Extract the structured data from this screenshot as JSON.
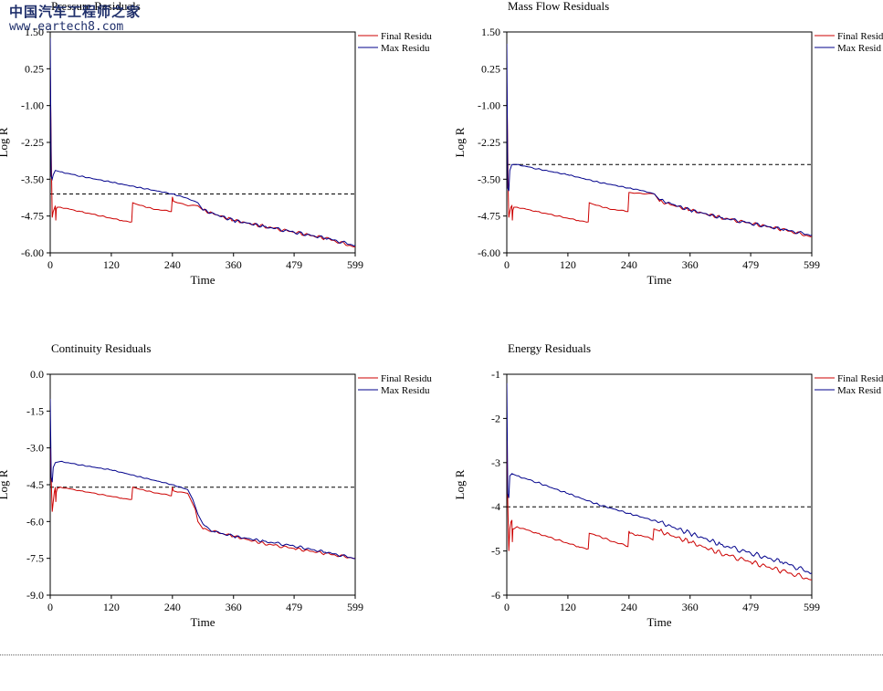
{
  "watermark": {
    "brand": "中国汽车工程师之家",
    "url": "www.eartech8.com"
  },
  "colors": {
    "final": "#cc0000",
    "max": "#00008b",
    "threshold": "#000000",
    "axis": "#000000"
  },
  "chart_data": [
    {
      "type": "line",
      "title": "Pressure Residuals",
      "xlabel": "Time",
      "ylabel": "Log R",
      "xlim": [
        0,
        599
      ],
      "ylim": [
        -6.0,
        1.5
      ],
      "xticks": [
        0,
        120,
        240,
        360,
        479,
        599
      ],
      "yticks": [
        1.5,
        0.25,
        -1.0,
        -2.25,
        -3.5,
        -4.75,
        -6.0
      ],
      "yticklabels": [
        "1.50",
        "0.25",
        "-1.00",
        "-2.25",
        "-3.50",
        "-4.75",
        "-6.00"
      ],
      "threshold": -4.0,
      "legend": {
        "position": "top-right",
        "entries": [
          "Final Residu",
          "Max Residu"
        ]
      },
      "series": [
        {
          "name": "Final Residual",
          "x": [
            0,
            1,
            2,
            3,
            4,
            6,
            8,
            10,
            11,
            12,
            14,
            20,
            60,
            100,
            140,
            160,
            162,
            170,
            200,
            238,
            240,
            242,
            250,
            270,
            290,
            300,
            360,
            420,
            479,
            540,
            599
          ],
          "y": [
            0.2,
            -1.2,
            -2.6,
            -3.8,
            -4.8,
            -4.6,
            -4.5,
            -4.4,
            -4.9,
            -4.5,
            -4.45,
            -4.45,
            -4.6,
            -4.75,
            -4.9,
            -4.95,
            -4.3,
            -4.35,
            -4.5,
            -4.6,
            -4.1,
            -4.25,
            -4.3,
            -4.4,
            -4.4,
            -4.55,
            -4.9,
            -5.1,
            -5.3,
            -5.5,
            -5.8
          ]
        },
        {
          "name": "Max Residual",
          "x": [
            0,
            2,
            4,
            6,
            10,
            20,
            60,
            120,
            180,
            240,
            270,
            290,
            300,
            360,
            420,
            479,
            540,
            599
          ],
          "y": [
            1.3,
            -3.4,
            -3.5,
            -3.35,
            -3.2,
            -3.25,
            -3.4,
            -3.6,
            -3.8,
            -4.0,
            -4.15,
            -4.3,
            -4.55,
            -4.9,
            -5.1,
            -5.3,
            -5.5,
            -5.75
          ]
        }
      ]
    },
    {
      "type": "line",
      "title": "Mass Flow Residuals",
      "xlabel": "Time",
      "ylabel": "Log R",
      "xlim": [
        0,
        599
      ],
      "ylim": [
        -6.0,
        1.5
      ],
      "xticks": [
        0,
        120,
        240,
        360,
        479,
        599
      ],
      "yticks": [
        1.5,
        0.25,
        -1.0,
        -2.25,
        -3.5,
        -4.75,
        -6.0
      ],
      "yticklabels": [
        "1.50",
        "0.25",
        "-1.00",
        "-2.25",
        "-3.50",
        "-4.75",
        "-6.00"
      ],
      "threshold": -3.0,
      "legend": {
        "position": "top-right",
        "entries": [
          "Final Resid",
          "Max Resid"
        ]
      },
      "series": [
        {
          "name": "Final Residual",
          "x": [
            0,
            1,
            2,
            3,
            4,
            6,
            8,
            10,
            11,
            12,
            14,
            20,
            60,
            100,
            140,
            160,
            162,
            170,
            200,
            238,
            240,
            242,
            250,
            270,
            290,
            300,
            360,
            420,
            479,
            540,
            599
          ],
          "y": [
            -0.2,
            -1.5,
            -2.8,
            -4.1,
            -4.8,
            -4.6,
            -4.45,
            -4.4,
            -4.9,
            -4.55,
            -4.45,
            -4.45,
            -4.6,
            -4.75,
            -4.9,
            -4.95,
            -4.3,
            -4.35,
            -4.5,
            -4.6,
            -3.95,
            -3.95,
            -3.98,
            -4.0,
            -4.0,
            -4.25,
            -4.55,
            -4.8,
            -5.0,
            -5.2,
            -5.45
          ]
        },
        {
          "name": "Max Residual",
          "x": [
            0,
            2,
            4,
            6,
            10,
            20,
            60,
            120,
            180,
            240,
            270,
            290,
            300,
            360,
            420,
            479,
            540,
            599
          ],
          "y": [
            1.1,
            -3.8,
            -3.9,
            -3.2,
            -3.0,
            -3.0,
            -3.15,
            -3.35,
            -3.6,
            -3.8,
            -3.9,
            -4.0,
            -4.2,
            -4.55,
            -4.8,
            -5.0,
            -5.2,
            -5.4
          ]
        }
      ]
    },
    {
      "type": "line",
      "title": "Continuity Residuals",
      "xlabel": "Time",
      "ylabel": "Log R",
      "xlim": [
        0,
        599
      ],
      "ylim": [
        -9.0,
        0.0
      ],
      "xticks": [
        0,
        120,
        240,
        360,
        479,
        599
      ],
      "yticks": [
        0.0,
        -1.5,
        -3.0,
        -4.5,
        -6.0,
        -7.5,
        -9.0
      ],
      "yticklabels": [
        "0.0",
        "-1.5",
        "-3.0",
        "-4.5",
        "-6.0",
        "-7.5",
        "-9.0"
      ],
      "threshold": -4.6,
      "legend": {
        "position": "top-right",
        "entries": [
          "Final Residu",
          "Max Residu"
        ]
      },
      "series": [
        {
          "name": "Final Residual",
          "x": [
            0,
            1,
            2,
            3,
            4,
            6,
            8,
            10,
            11,
            12,
            14,
            20,
            60,
            100,
            140,
            160,
            162,
            170,
            200,
            238,
            240,
            242,
            250,
            270,
            285,
            290,
            300,
            320,
            360,
            420,
            479,
            540,
            599
          ],
          "y": [
            -3.0,
            -3.6,
            -4.3,
            -5.0,
            -5.6,
            -5.2,
            -4.8,
            -4.6,
            -5.2,
            -4.8,
            -4.65,
            -4.6,
            -4.75,
            -4.9,
            -5.05,
            -5.1,
            -4.6,
            -4.65,
            -4.8,
            -4.95,
            -4.6,
            -4.75,
            -4.8,
            -4.85,
            -5.5,
            -6.0,
            -6.3,
            -6.4,
            -6.6,
            -6.9,
            -7.1,
            -7.3,
            -7.5
          ]
        },
        {
          "name": "Max Residual",
          "x": [
            0,
            2,
            4,
            6,
            10,
            20,
            60,
            120,
            180,
            240,
            270,
            280,
            290,
            300,
            320,
            360,
            420,
            479,
            540,
            599
          ],
          "y": [
            -1.0,
            -4.2,
            -4.4,
            -3.8,
            -3.6,
            -3.55,
            -3.7,
            -3.9,
            -4.2,
            -4.5,
            -4.7,
            -5.1,
            -5.7,
            -6.1,
            -6.4,
            -6.6,
            -6.8,
            -7.0,
            -7.25,
            -7.5
          ]
        }
      ]
    },
    {
      "type": "line",
      "title": "Energy Residuals",
      "xlabel": "Time",
      "ylabel": "Log R",
      "xlim": [
        0,
        599
      ],
      "ylim": [
        -6,
        -1
      ],
      "xticks": [
        0,
        120,
        240,
        360,
        479,
        599
      ],
      "yticks": [
        -1,
        -2,
        -3,
        -4,
        -5,
        -6
      ],
      "yticklabels": [
        "-1",
        "-2",
        "-3",
        "-4",
        "-5",
        "-6"
      ],
      "threshold": -4.0,
      "legend": {
        "position": "top-right",
        "entries": [
          "Final Resid",
          "Max Resid"
        ]
      },
      "series": [
        {
          "name": "Final Residual",
          "x": [
            0,
            1,
            2,
            3,
            4,
            6,
            8,
            10,
            11,
            12,
            14,
            20,
            60,
            100,
            140,
            160,
            162,
            170,
            200,
            238,
            240,
            242,
            260,
            280,
            287,
            289,
            300,
            360,
            420,
            479,
            540,
            599
          ],
          "y": [
            -2.5,
            -3.2,
            -3.9,
            -4.5,
            -5.0,
            -4.5,
            -4.35,
            -4.3,
            -4.8,
            -4.5,
            -4.5,
            -4.45,
            -4.6,
            -4.75,
            -4.9,
            -4.95,
            -4.6,
            -4.62,
            -4.75,
            -4.9,
            -4.55,
            -4.6,
            -4.65,
            -4.7,
            -4.75,
            -4.5,
            -4.55,
            -4.8,
            -5.05,
            -5.25,
            -5.45,
            -5.65
          ]
        },
        {
          "name": "Max Residual",
          "x": [
            0,
            2,
            4,
            6,
            10,
            20,
            60,
            120,
            180,
            240,
            300,
            360,
            420,
            479,
            540,
            599
          ],
          "y": [
            -1.2,
            -3.7,
            -3.8,
            -3.3,
            -3.25,
            -3.3,
            -3.45,
            -3.7,
            -3.95,
            -4.15,
            -4.35,
            -4.6,
            -4.85,
            -5.05,
            -5.25,
            -5.5
          ]
        }
      ]
    }
  ]
}
